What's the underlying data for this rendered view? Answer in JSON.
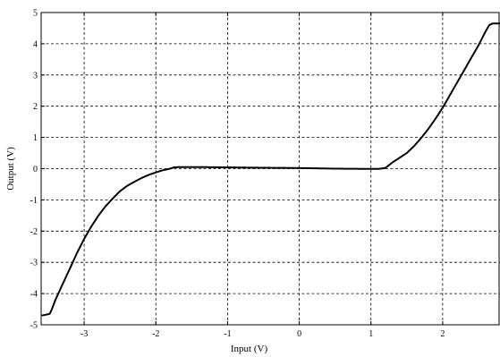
{
  "chart_data": {
    "type": "line",
    "title": "",
    "xlabel": "Input (V)",
    "ylabel": "Output (V)",
    "xlim": [
      -3.6,
      2.8
    ],
    "ylim": [
      -5,
      5
    ],
    "xticks": [
      -3,
      -2,
      -1,
      0,
      1,
      2
    ],
    "yticks": [
      -5,
      -4,
      -3,
      -2,
      -1,
      0,
      1,
      2,
      3,
      4,
      5
    ],
    "grid": true,
    "line_color": "#000000",
    "series": [
      {
        "x": [
          -3.58,
          -3.48,
          -3.45,
          -3.4,
          -3.3,
          -3.2,
          -3.1,
          -3.0,
          -2.9,
          -2.8,
          -2.7,
          -2.6,
          -2.5,
          -2.4,
          -2.3,
          -2.2,
          -2.1,
          -2.0,
          -1.9,
          -1.8,
          -1.75,
          -1.7,
          -1.5,
          -1.3,
          -1.0,
          -0.5,
          0.0,
          0.5,
          1.0,
          1.1,
          1.2,
          1.3,
          1.4,
          1.5,
          1.6,
          1.7,
          1.8,
          1.9,
          2.0,
          2.1,
          2.2,
          2.3,
          2.4,
          2.5,
          2.6,
          2.65,
          2.7,
          2.8
        ],
        "y": [
          -4.7,
          -4.65,
          -4.5,
          -4.2,
          -3.7,
          -3.2,
          -2.7,
          -2.25,
          -1.85,
          -1.5,
          -1.2,
          -0.95,
          -0.72,
          -0.55,
          -0.42,
          -0.3,
          -0.2,
          -0.12,
          -0.05,
          0.0,
          0.04,
          0.05,
          0.05,
          0.05,
          0.04,
          0.03,
          0.02,
          0.0,
          -0.01,
          -0.01,
          0.02,
          0.2,
          0.35,
          0.5,
          0.72,
          0.98,
          1.27,
          1.6,
          1.95,
          2.35,
          2.75,
          3.15,
          3.55,
          3.95,
          4.4,
          4.6,
          4.65,
          4.65
        ]
      }
    ]
  }
}
